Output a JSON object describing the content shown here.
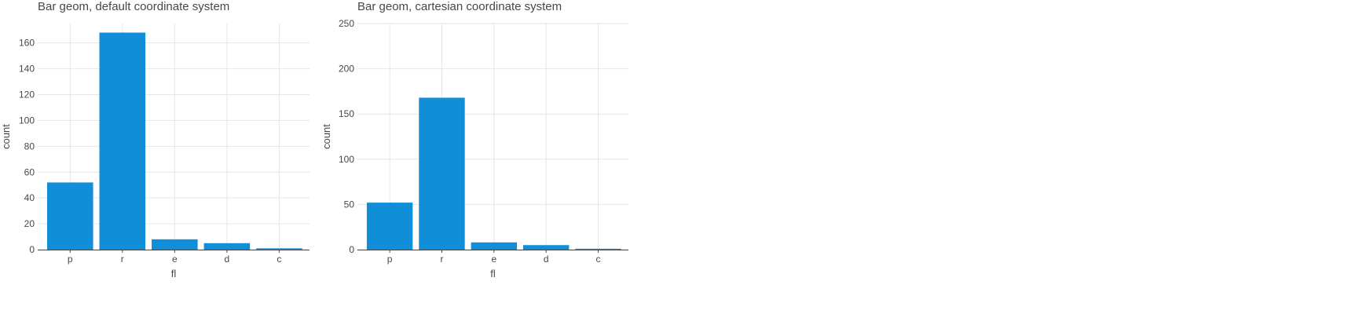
{
  "charts": [
    {
      "title": "Bar geom, default coordinate system",
      "chart_data": {
        "type": "bar",
        "title": "Bar geom, default coordinate system",
        "xlabel": "fl",
        "ylabel": "count",
        "categories": [
          "p",
          "r",
          "e",
          "d",
          "c"
        ],
        "values": [
          52,
          168,
          8,
          5,
          1
        ],
        "ylim": [
          0,
          175
        ],
        "yticks": [
          0,
          20,
          40,
          60,
          80,
          100,
          120,
          140,
          160
        ],
        "grid": true,
        "bar_color": "#118ed8"
      }
    },
    {
      "title": "Bar geom, cartesian coordinate system",
      "chart_data": {
        "type": "bar",
        "title": "Bar geom, cartesian coordinate system",
        "xlabel": "fl",
        "ylabel": "count",
        "categories": [
          "p",
          "r",
          "e",
          "d",
          "c"
        ],
        "values": [
          52,
          168,
          8,
          5,
          1
        ],
        "ylim": [
          0,
          250
        ],
        "yticks": [
          0,
          50,
          100,
          150,
          200,
          250
        ],
        "grid": true,
        "bar_color": "#118ed8"
      }
    }
  ]
}
